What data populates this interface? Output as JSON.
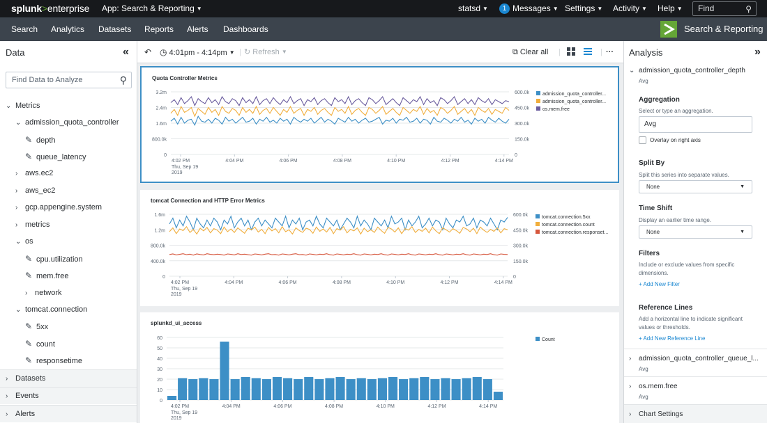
{
  "topbar": {
    "logo_main": "splunk",
    "logo_sep": ">",
    "logo_product": "enterprise",
    "app_label": "App: Search & Reporting",
    "user": "statsd",
    "messages_count": "1",
    "messages": "Messages",
    "settings": "Settings",
    "activity": "Activity",
    "help": "Help",
    "find_placeholder": "Find"
  },
  "nav": {
    "items": [
      "Search",
      "Analytics",
      "Datasets",
      "Reports",
      "Alerts",
      "Dashboards"
    ],
    "app_name": "Search & Reporting"
  },
  "left": {
    "title": "Data",
    "search_placeholder": "Find Data to Analyze",
    "metrics_label": "Metrics",
    "aqc": "admission_quota_controller",
    "aqc_children": [
      "depth",
      "queue_latency"
    ],
    "groups": [
      "aws.ec2",
      "aws_ec2",
      "gcp.appengine.system",
      "metrics"
    ],
    "os": "os",
    "os_children": [
      "cpu.utilization",
      "mem.free"
    ],
    "network": "network",
    "tomcat": "tomcat.connection",
    "tomcat_children": [
      "5xx",
      "count",
      "responsetime"
    ],
    "footer": [
      "Datasets",
      "Events",
      "Alerts"
    ]
  },
  "toolbar": {
    "time_range": "4:01pm - 4:14pm",
    "refresh": "Refresh",
    "clear_all": "Clear all"
  },
  "right": {
    "title": "Analysis",
    "metric": "admission_quota_controller_depth",
    "metric_agg": "Avg",
    "aggregation_title": "Aggregation",
    "aggregation_desc": "Select or type an aggregation.",
    "aggregation_value": "Avg",
    "overlay_label": "Overlay on right axis",
    "split_title": "Split By",
    "split_desc": "Split this series into separate values.",
    "split_value": "None",
    "shift_title": "Time Shift",
    "shift_desc": "Display an earlier time range.",
    "shift_value": "None",
    "filters_title": "Filters",
    "filters_desc": "Include or exclude values from specific dimensions.",
    "filters_link": "+ Add New Filter",
    "ref_title": "Reference Lines",
    "ref_desc": "Add a horizontal line to indicate significant values or thresholds.",
    "ref_link": "+ Add New Reference Line",
    "metric2": "admission_quota_controller_queue_l...",
    "metric2_agg": "Avg",
    "metric3": "os.mem.free",
    "metric3_agg": "Avg",
    "chart_settings": "Chart Settings"
  },
  "x_labels": [
    "4:02 PM",
    "4:04 PM",
    "4:06 PM",
    "4:08 PM",
    "4:10 PM",
    "4:12 PM",
    "4:14 PM"
  ],
  "x_sub1": "Thu, Sep 19",
  "x_sub2": "2019",
  "colors": {
    "blue": "#3d8fc6",
    "orange": "#f1ae3d",
    "purple": "#6a5c9e",
    "red": "#d6563c"
  },
  "chart_data": [
    {
      "type": "line",
      "title": "Quota Controller Metrics",
      "x_range": [
        "4:01 PM",
        "4:14 PM"
      ],
      "y_ticks": [
        "0",
        "800.0k",
        "1.6m",
        "2.4m",
        "3.2m"
      ],
      "ylim": [
        0,
        3200000
      ],
      "y2_ticks": [
        "0",
        "150.0k",
        "300.0k",
        "450.0k",
        "600.0k"
      ],
      "y2lim": [
        0,
        600000
      ],
      "legend": "right",
      "series": [
        {
          "name": "admission_quota_controller...",
          "color": "#3d8fc6",
          "axis": "left",
          "values": [
            1700000,
            1850000,
            1550000,
            1900000,
            1600000,
            1750000,
            1800000,
            1500000,
            1950000,
            1700000,
            1650000,
            1800000,
            1600000,
            1850000,
            1750000,
            1550000,
            1900000,
            1700000,
            1800000,
            1600000,
            1750000,
            1900000,
            1650000,
            1700000,
            1850000,
            1550000,
            1800000,
            1700000,
            1900000,
            1650000,
            1750000,
            1600000,
            1850000,
            1700000,
            1800000,
            1550000,
            1900000,
            1750000,
            1650000,
            1800000,
            1700000,
            1850000,
            1600000,
            1750000,
            1900000,
            1650000,
            1800000,
            1700000,
            1550000,
            1850000,
            1750000,
            1650000,
            1900000,
            1700000,
            1800000,
            1600000,
            1750000,
            1850000,
            1650000,
            1700000,
            1800000,
            1900000,
            1550000,
            1750000,
            1700000,
            1850000,
            1600000,
            1800000,
            1750000,
            1900000,
            1650000,
            1700000,
            1850000,
            1600000,
            1800000,
            1750000,
            1550000,
            1900000,
            1700000,
            1650000,
            1850000,
            1750000,
            1600000,
            1800000,
            1700000,
            1900000,
            1650000,
            1750000,
            1550000,
            1850000,
            1700000,
            1800000,
            1600000,
            1900000,
            1750000,
            1650000,
            1850000,
            1700000,
            1600000,
            1800000
          ]
        },
        {
          "name": "admission_quota_controller...",
          "color": "#f1ae3d",
          "axis": "left",
          "values": [
            2100000,
            2300000,
            2000000,
            2450000,
            2150000,
            2250000,
            2400000,
            1950000,
            2350000,
            2200000,
            2050000,
            2400000,
            2150000,
            2300000,
            2000000,
            2450000,
            2200000,
            2100000,
            2350000,
            2250000,
            2000000,
            2400000,
            2150000,
            2300000,
            2100000,
            2450000,
            2050000,
            2250000,
            2350000,
            2100000,
            2400000,
            2200000,
            2000000,
            2300000,
            2150000,
            2450000,
            2100000,
            2250000,
            2350000,
            2000000,
            2300000,
            2200000,
            2400000,
            2050000,
            2250000,
            2350000,
            2150000,
            2000000,
            2400000,
            2200000,
            2300000,
            2100000,
            2450000,
            2050000,
            2250000,
            2350000,
            2150000,
            2000000,
            2400000,
            2300000,
            2100000,
            2250000,
            2450000,
            2050000,
            2200000,
            2350000,
            2150000,
            2000000,
            2400000,
            2250000,
            2100000,
            2300000,
            2200000,
            2450000,
            2050000,
            2350000,
            2150000,
            2250000,
            2000000,
            2400000,
            2300000,
            2100000,
            2250000,
            2450000,
            2050000,
            2200000,
            2350000,
            2100000,
            2300000,
            2000000,
            2400000,
            2250000,
            2150000,
            2350000,
            2050000,
            2300000,
            2200000,
            2100000,
            2400000,
            2250000
          ]
        },
        {
          "name": "os.mem.free",
          "color": "#6a5c9e",
          "axis": "left",
          "values": [
            2650000,
            2800000,
            2550000,
            2900000,
            2600000,
            2750000,
            2950000,
            2500000,
            2850000,
            2700000,
            2600000,
            2900000,
            2650000,
            2800000,
            2550000,
            2950000,
            2700000,
            2600000,
            2850000,
            2750000,
            2500000,
            2900000,
            2650000,
            2800000,
            2600000,
            2950000,
            2550000,
            2750000,
            2850000,
            2600000,
            2900000,
            2700000,
            2550000,
            2800000,
            2650000,
            2950000,
            2600000,
            2750000,
            2850000,
            2500000,
            2800000,
            2700000,
            2900000,
            2550000,
            2750000,
            2850000,
            2650000,
            2500000,
            2900000,
            2700000,
            2800000,
            2600000,
            2950000,
            2550000,
            2750000,
            2850000,
            2650000,
            2500000,
            2900000,
            2800000,
            2600000,
            2750000,
            2950000,
            2550000,
            2700000,
            2850000,
            2650000,
            2500000,
            2900000,
            2750000,
            2600000,
            2800000,
            2700000,
            2950000,
            2550000,
            2850000,
            2650000,
            2750000,
            2500000,
            2900000,
            2800000,
            2600000,
            2750000,
            2950000,
            2550000,
            2700000,
            2850000,
            2600000,
            2800000,
            2550000,
            2900000,
            2750000,
            2650000,
            2850000,
            2550000,
            2800000,
            2700000,
            2600000,
            2750000,
            2700000
          ]
        }
      ]
    },
    {
      "type": "line",
      "title": "tomcat Connection and HTTP Error Metrics",
      "x_range": [
        "4:01 PM",
        "4:14 PM"
      ],
      "y_ticks": [
        "0",
        "400.0k",
        "800.0k",
        "1.2m",
        "1.6m"
      ],
      "ylim": [
        0,
        1600000
      ],
      "y2_ticks": [
        "0",
        "150.0k",
        "300.0k",
        "450.0k",
        "600.0k"
      ],
      "y2lim": [
        0,
        600000
      ],
      "legend": "right",
      "series": [
        {
          "name": "tomcat.connection.5xx",
          "color": "#3d8fc6",
          "axis": "left",
          "values": [
            1350000,
            1500000,
            1250000,
            1450000,
            1300000,
            1550000,
            1400000,
            1200000,
            1500000,
            1350000,
            1250000,
            1450000,
            1300000,
            1500000,
            1400000,
            1200000,
            1450000,
            1350000,
            1550000,
            1250000,
            1400000,
            1500000,
            1300000,
            1450000,
            1200000,
            1400000,
            1500000,
            1300000,
            1450000,
            1350000,
            1250000,
            1500000,
            1400000,
            1300000,
            1550000,
            1250000,
            1450000,
            1350000,
            1500000,
            1200000,
            1400000,
            1450000,
            1300000,
            1550000,
            1350000,
            1250000,
            1500000,
            1400000,
            1300000,
            1450000,
            1200000,
            1350000,
            1500000,
            1400000,
            1250000,
            1550000,
            1300000,
            1450000,
            1350000,
            1200000,
            1500000,
            1400000,
            1300000,
            1450000,
            1250000,
            1550000,
            1350000,
            1400000,
            1500000,
            1200000,
            1450000,
            1300000,
            1400000,
            1550000,
            1250000,
            1350000,
            1500000,
            1300000,
            1450000,
            1400000,
            1200000,
            1500000,
            1350000,
            1250000,
            1450000,
            1400000,
            1550000,
            1300000,
            1350000,
            1500000,
            1250000,
            1450000,
            1400000,
            1300000,
            1500000,
            1350000,
            1200000,
            1450000,
            1400000,
            1520000
          ]
        },
        {
          "name": "tomcat.connection.count",
          "color": "#f1ae3d",
          "axis": "left",
          "values": [
            1150000,
            1250000,
            1100000,
            1220000,
            1180000,
            1280000,
            1130000,
            1210000,
            1090000,
            1240000,
            1170000,
            1260000,
            1120000,
            1230000,
            1190000,
            1100000,
            1270000,
            1150000,
            1220000,
            1130000,
            1250000,
            1180000,
            1110000,
            1240000,
            1200000,
            1270000,
            1140000,
            1210000,
            1100000,
            1260000,
            1170000,
            1230000,
            1120000,
            1280000,
            1150000,
            1200000,
            1090000,
            1250000,
            1180000,
            1130000,
            1240000,
            1210000,
            1110000,
            1270000,
            1160000,
            1220000,
            1140000,
            1260000,
            1100000,
            1230000,
            1190000,
            1280000,
            1120000,
            1210000,
            1170000,
            1250000,
            1090000,
            1240000,
            1150000,
            1200000,
            1130000,
            1270000,
            1180000,
            1110000,
            1260000,
            1220000,
            1140000,
            1250000,
            1100000,
            1230000,
            1190000,
            1280000,
            1130000,
            1210000,
            1160000,
            1240000,
            1120000,
            1270000,
            1170000,
            1100000,
            1250000,
            1200000,
            1140000,
            1230000,
            1180000,
            1110000,
            1260000,
            1220000,
            1150000,
            1240000,
            1100000,
            1270000,
            1190000,
            1130000,
            1210000,
            1160000,
            1250000,
            1120000,
            1230000,
            1200000
          ]
        },
        {
          "name": "tomcat.connection.responset...",
          "color": "#d6563c",
          "axis": "left",
          "values": [
            560000,
            575000,
            550000,
            565000,
            580000,
            555000,
            570000,
            545000,
            575000,
            560000,
            550000,
            580000,
            565000,
            555000,
            570000,
            560000,
            545000,
            575000,
            565000,
            550000,
            580000,
            560000,
            570000,
            555000,
            545000,
            575000,
            565000,
            550000,
            570000,
            580000,
            555000,
            560000,
            545000,
            575000,
            565000,
            550000,
            570000,
            580000,
            555000,
            560000,
            545000,
            575000,
            565000,
            550000,
            570000,
            560000,
            580000,
            555000,
            545000,
            575000,
            565000,
            550000,
            570000,
            560000,
            580000,
            555000,
            545000,
            575000,
            565000,
            550000,
            570000,
            560000,
            580000,
            555000,
            545000,
            575000,
            565000,
            550000,
            570000,
            560000,
            580000,
            555000,
            545000,
            575000,
            565000,
            550000,
            570000,
            560000,
            580000,
            555000,
            545000,
            575000,
            565000,
            550000,
            570000,
            560000,
            580000,
            555000,
            545000,
            575000,
            565000,
            550000,
            570000,
            560000,
            580000,
            555000,
            545000,
            575000,
            565000,
            560000
          ]
        }
      ]
    },
    {
      "type": "bar",
      "title": "splunkd_ui_access",
      "x_range": [
        "4:01 PM",
        "4:14 PM"
      ],
      "y_ticks": [
        "0",
        "10",
        "20",
        "30",
        "40",
        "50",
        "60"
      ],
      "ylim": [
        0,
        60
      ],
      "legend": "right",
      "series": [
        {
          "name": "Count",
          "color": "#3d8fc6",
          "values": [
            4,
            21,
            20,
            21,
            20,
            56,
            20,
            22,
            21,
            20,
            22,
            21,
            20,
            22,
            20,
            21,
            22,
            20,
            21,
            20,
            21,
            22,
            20,
            21,
            22,
            20,
            21,
            20,
            21,
            22,
            20,
            8
          ]
        }
      ]
    }
  ]
}
